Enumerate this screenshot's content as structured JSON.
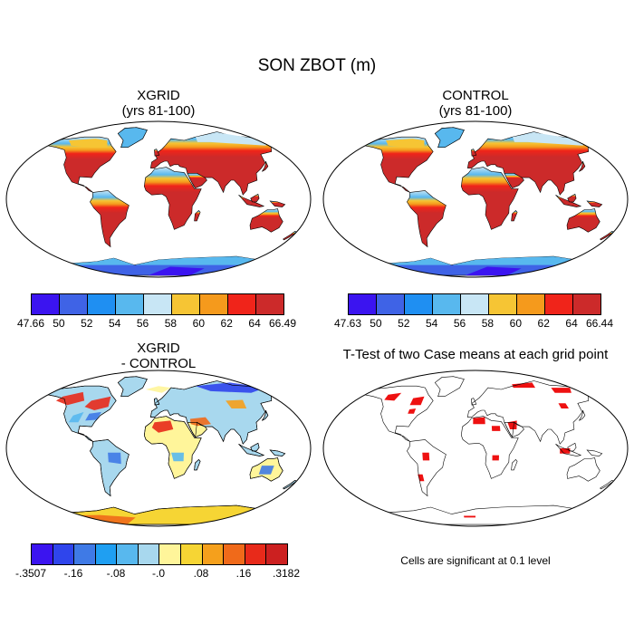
{
  "title": "SON ZBOT (m)",
  "panels": [
    {
      "title_line1": "XGRID",
      "title_line2": "(yrs 81-100)",
      "kind": "absolute"
    },
    {
      "title_line1": "CONTROL",
      "title_line2": "(yrs 81-100)",
      "kind": "absolute"
    },
    {
      "title_line1": "XGRID",
      "title_line2": "- CONTROL",
      "kind": "difference"
    },
    {
      "title_line1": "T-Test of two Case means at each grid point",
      "title_line2": "",
      "kind": "significance"
    }
  ],
  "colorbars": [
    {
      "labels": [
        "47.66",
        "50",
        "52",
        "54",
        "56",
        "58",
        "60",
        "62",
        "64",
        "66.49"
      ],
      "colors": [
        "#3b14f0",
        "#3f63e6",
        "#1f8ff2",
        "#58b8ee",
        "#c8e6f5",
        "#f6c534",
        "#f59a1c",
        "#f0241a",
        "#cc2a2a"
      ]
    },
    {
      "labels": [
        "47.63",
        "50",
        "52",
        "54",
        "56",
        "58",
        "60",
        "62",
        "64",
        "66.44"
      ],
      "colors": [
        "#3b14f0",
        "#3f63e6",
        "#1f8ff2",
        "#58b8ee",
        "#c8e6f5",
        "#f6c534",
        "#f59a1c",
        "#f0241a",
        "#cc2a2a"
      ]
    },
    {
      "labels": [
        "-.3507",
        "-.16",
        "-.08",
        "-.0",
        ".08",
        ".16",
        ".3182"
      ],
      "colors": [
        "#3b14f0",
        "#2f45ec",
        "#3f7ae6",
        "#1f9ff2",
        "#58b8ee",
        "#a8d8ee",
        "#fff59a",
        "#f6d534",
        "#f5a01c",
        "#f06a1a",
        "#e82a1a",
        "#cc2020"
      ]
    }
  ],
  "significance_note": "Cells are significant at 0.1 level",
  "colors": {
    "significant": "#ee1111",
    "coast": "#000000"
  }
}
